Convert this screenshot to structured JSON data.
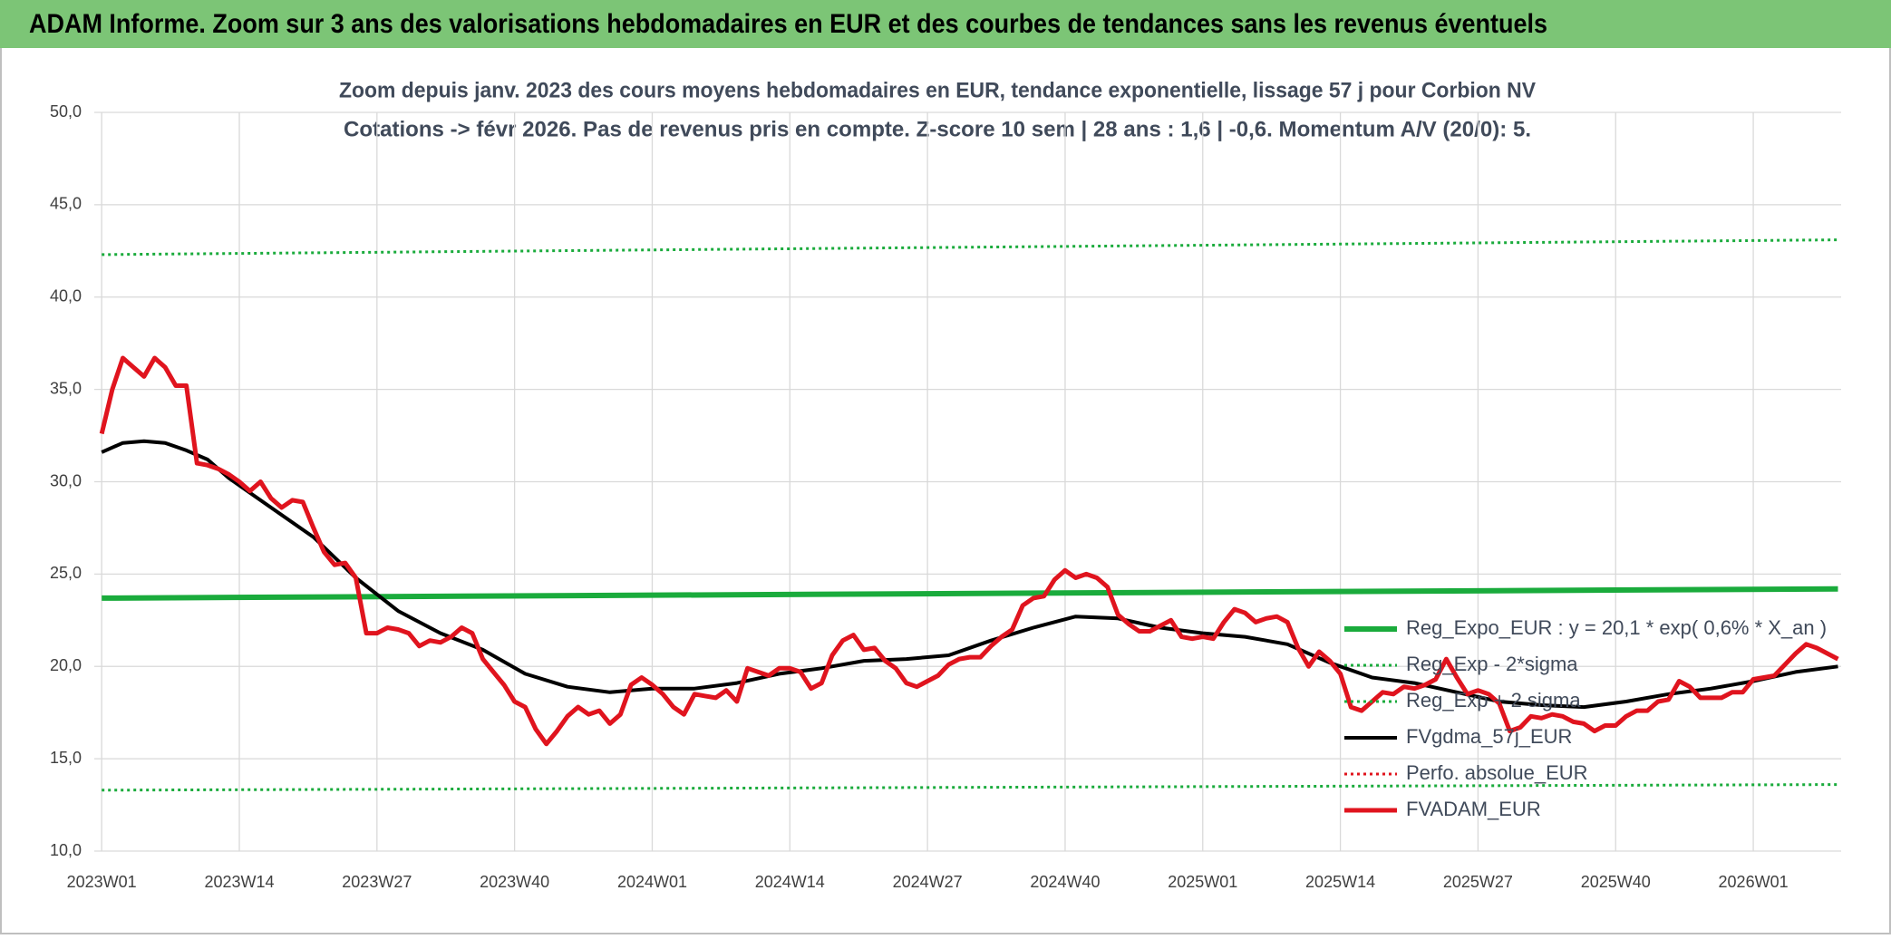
{
  "chart_data": {
    "type": "line",
    "header": "ADAM Informe. Zoom sur 3 ans des valorisations hebdomadaires en EUR et des courbes de tendances sans les revenus éventuels",
    "title": "Zoom depuis janv. 2023 des cours moyens hebdomadaires en EUR, tendance exponentielle, lissage 57 j pour Corbion NV",
    "subtitle": "Cotations -> févr 2026. Pas de revenus pris en compte. Z-score 10 sem | 28 ans : 1,6 | -0,6. Momentum A/V (20/0): 5.",
    "xlim": [
      -0.7,
      164.3
    ],
    "xticks": [
      {
        "value": 0,
        "label": "2023W01"
      },
      {
        "value": 13,
        "label": "2023W14"
      },
      {
        "value": 26,
        "label": "2023W27"
      },
      {
        "value": 39,
        "label": "2023W40"
      },
      {
        "value": 52,
        "label": "2024W01"
      },
      {
        "value": 65,
        "label": "2024W14"
      },
      {
        "value": 78,
        "label": "2024W27"
      },
      {
        "value": 91,
        "label": "2024W40"
      },
      {
        "value": 104,
        "label": "2025W01"
      },
      {
        "value": 117,
        "label": "2025W14"
      },
      {
        "value": 130,
        "label": "2025W27"
      },
      {
        "value": 143,
        "label": "2025W40"
      },
      {
        "value": 156,
        "label": "2026W01"
      }
    ],
    "ylim": [
      10,
      50
    ],
    "yticks": [
      {
        "value": 10,
        "label": "10,0"
      },
      {
        "value": 15,
        "label": "15,0"
      },
      {
        "value": 20,
        "label": "20,0"
      },
      {
        "value": 25,
        "label": "25,0"
      },
      {
        "value": 30,
        "label": "30,0"
      },
      {
        "value": 35,
        "label": "35,0"
      },
      {
        "value": 40,
        "label": "40,0"
      },
      {
        "value": 45,
        "label": "45,0"
      },
      {
        "value": 50,
        "label": "50,0"
      }
    ],
    "grid": true,
    "legend": "right",
    "series": [
      {
        "name": "Reg_Expo_EUR : y = 20,1 * exp( 0,6% *  X_an )",
        "color": "#1aab3c",
        "style": "solid",
        "width": 6,
        "x": [
          0,
          164
        ],
        "values": [
          23.7,
          24.2
        ]
      },
      {
        "name": "Reg_Exp - 2*sigma",
        "color": "#1aab3c",
        "style": "dotted",
        "width": 3,
        "x": [
          0,
          164
        ],
        "values": [
          13.3,
          13.6
        ]
      },
      {
        "name": "Reg_Exp + 2 sigma",
        "color": "#1aab3c",
        "style": "dotted",
        "width": 3,
        "x": [
          0,
          164
        ],
        "values": [
          42.3,
          43.1
        ]
      },
      {
        "name": "FVgdma_57j_EUR",
        "color": "#000000",
        "style": "solid",
        "width": 4,
        "x": [
          0,
          2,
          4,
          6,
          8,
          10,
          12,
          16,
          20,
          24,
          28,
          32,
          36,
          40,
          44,
          48,
          52,
          56,
          60,
          64,
          68,
          72,
          76,
          80,
          84,
          88,
          92,
          96,
          100,
          104,
          108,
          112,
          116,
          120,
          124,
          128,
          132,
          136,
          140,
          144,
          148,
          152,
          156,
          160,
          164
        ],
        "values": [
          31.6,
          32.1,
          32.2,
          32.1,
          31.7,
          31.2,
          30.2,
          28.6,
          27.0,
          24.8,
          23.0,
          21.8,
          20.9,
          19.6,
          18.9,
          18.6,
          18.8,
          18.8,
          19.1,
          19.6,
          19.9,
          20.3,
          20.4,
          20.6,
          21.4,
          22.1,
          22.7,
          22.6,
          22.1,
          21.8,
          21.6,
          21.2,
          20.2,
          19.4,
          19.1,
          18.6,
          18.1,
          17.9,
          17.8,
          18.1,
          18.5,
          18.8,
          19.2,
          19.7,
          20.0
        ]
      },
      {
        "name": "Perfo. absolue_EUR",
        "color": "#e0141e",
        "style": "dotted",
        "width": 3,
        "x": [],
        "values": []
      },
      {
        "name": "FVADAM_EUR",
        "color": "#e0141e",
        "style": "solid",
        "width": 5,
        "x": [
          0,
          1,
          2,
          3,
          4,
          5,
          6,
          7,
          8,
          9,
          10,
          11,
          12,
          13,
          14,
          15,
          16,
          17,
          18,
          19,
          20,
          21,
          22,
          23,
          24,
          25,
          26,
          27,
          28,
          29,
          30,
          31,
          32,
          33,
          34,
          35,
          36,
          37,
          38,
          39,
          40,
          41,
          42,
          43,
          44,
          45,
          46,
          47,
          48,
          49,
          50,
          51,
          52,
          53,
          54,
          55,
          56,
          57,
          58,
          59,
          60,
          61,
          62,
          63,
          64,
          65,
          66,
          67,
          68,
          69,
          70,
          71,
          72,
          73,
          74,
          75,
          76,
          77,
          78,
          79,
          80,
          81,
          82,
          83,
          84,
          85,
          86,
          87,
          88,
          89,
          90,
          91,
          92,
          93,
          94,
          95,
          96,
          97,
          98,
          99,
          100,
          101,
          102,
          103,
          104,
          105,
          106,
          107,
          108,
          109,
          110,
          111,
          112,
          113,
          114,
          115,
          116,
          117,
          118,
          119,
          120,
          121,
          122,
          123,
          124,
          125,
          126,
          127,
          128,
          129,
          130,
          131,
          132,
          133,
          134,
          135,
          136,
          137,
          138,
          139,
          140,
          141,
          142,
          143,
          144,
          145,
          146,
          147,
          148,
          149,
          150,
          151,
          152,
          153,
          154,
          155,
          156,
          157,
          158,
          159,
          160,
          161,
          162,
          163,
          164
        ],
        "values": [
          32.6,
          35.0,
          36.7,
          36.2,
          35.7,
          36.7,
          36.2,
          35.2,
          35.2,
          31.0,
          30.9,
          30.7,
          30.4,
          30.0,
          29.5,
          30.0,
          29.1,
          28.6,
          29.0,
          28.9,
          27.5,
          26.2,
          25.5,
          25.6,
          24.8,
          21.8,
          21.8,
          22.1,
          22.0,
          21.8,
          21.1,
          21.4,
          21.3,
          21.6,
          22.1,
          21.8,
          20.4,
          19.7,
          19.0,
          18.1,
          17.8,
          16.6,
          15.8,
          16.5,
          17.3,
          17.8,
          17.4,
          17.6,
          16.9,
          17.4,
          19.0,
          19.4,
          19.0,
          18.5,
          17.8,
          17.4,
          18.5,
          18.4,
          18.3,
          18.7,
          18.1,
          19.9,
          19.7,
          19.5,
          19.9,
          19.9,
          19.7,
          18.8,
          19.1,
          20.6,
          21.4,
          21.7,
          20.9,
          21.0,
          20.3,
          19.9,
          19.1,
          18.9,
          19.2,
          19.5,
          20.1,
          20.4,
          20.5,
          20.5,
          21.1,
          21.6,
          22.0,
          23.3,
          23.7,
          23.8,
          24.7,
          25.2,
          24.8,
          25.0,
          24.8,
          24.3,
          22.8,
          22.3,
          21.9,
          21.9,
          22.2,
          22.5,
          21.6,
          21.5,
          21.6,
          21.5,
          22.4,
          23.1,
          22.9,
          22.4,
          22.6,
          22.7,
          22.4,
          21.0,
          20.0,
          20.8,
          20.3,
          19.6,
          17.8,
          17.6,
          18.1,
          18.6,
          18.5,
          18.9,
          18.8,
          19.0,
          19.3,
          20.4,
          19.4,
          18.5,
          18.7,
          18.5,
          18.0,
          16.5,
          16.7,
          17.3,
          17.2,
          17.4,
          17.3,
          17.0,
          16.9,
          16.5,
          16.8,
          16.8,
          17.3,
          17.6,
          17.6,
          18.1,
          18.2,
          19.2,
          18.9,
          18.3,
          18.3,
          18.3,
          18.6,
          18.6,
          19.3,
          19.4,
          19.5,
          20.1,
          20.7,
          21.2,
          21.0,
          20.7,
          20.4
        ]
      }
    ]
  }
}
